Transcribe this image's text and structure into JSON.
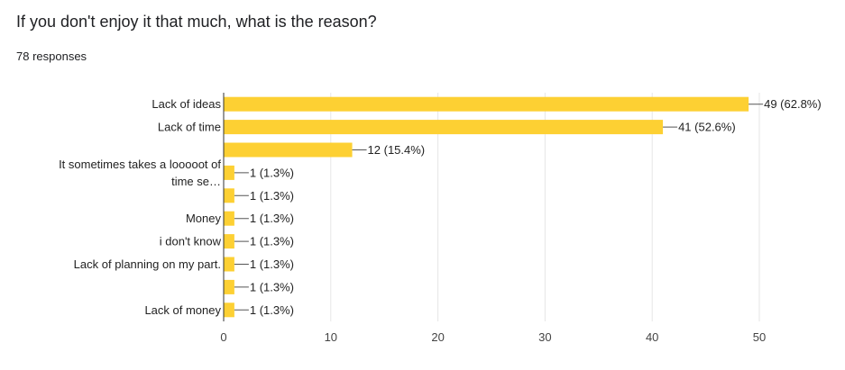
{
  "question": {
    "title": "If you don't enjoy it that much, what is the reason?",
    "responses": "78 responses"
  },
  "chart_data": {
    "type": "bar",
    "orientation": "horizontal",
    "bar_color": "#fdd033",
    "grid": true,
    "xlim": [
      0,
      50
    ],
    "xticks": [
      0,
      10,
      20,
      30,
      40,
      50
    ],
    "categories": [
      [
        "Lack of ideas"
      ],
      [
        "Lack of time"
      ],
      [],
      [
        "It sometimes takes a looooot of",
        "time se…"
      ],
      [],
      [
        "Money"
      ],
      [
        "i don't know"
      ],
      [
        "Lack of planning on my part."
      ],
      [],
      [
        "Lack of money"
      ]
    ],
    "values": [
      49,
      41,
      12,
      1,
      1,
      1,
      1,
      1,
      1,
      1
    ],
    "value_labels": [
      "49 (62.8%)",
      "41 (52.6%)",
      "12 (15.4%)",
      "1 (1.3%)",
      "1 (1.3%)",
      "1 (1.3%)",
      "1 (1.3%)",
      "1 (1.3%)",
      "1 (1.3%)",
      "1 (1.3%)"
    ]
  }
}
